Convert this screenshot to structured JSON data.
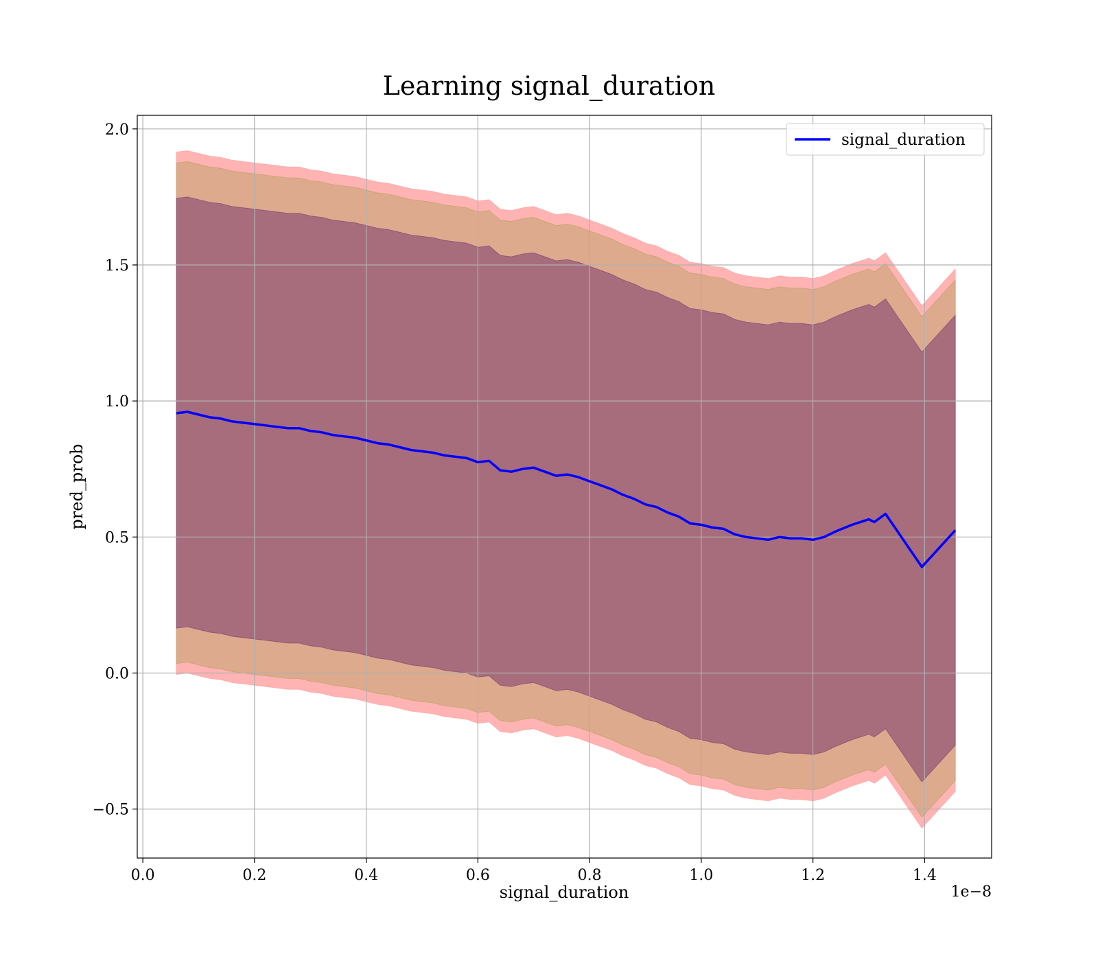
{
  "chart_data": {
    "type": "line",
    "title": "Learning signal_duration",
    "xlabel": "signal_duration",
    "ylabel": "pred_prob",
    "x_scale_label": "1e−8",
    "xlim": [
      -0.01,
      1.52
    ],
    "ylim": [
      -0.68,
      2.05
    ],
    "grid": true,
    "legend_position": "top-right",
    "x_ticks": [
      {
        "value": 0.0,
        "label": "0.0"
      },
      {
        "value": 0.2,
        "label": "0.2"
      },
      {
        "value": 0.4,
        "label": "0.4"
      },
      {
        "value": 0.6,
        "label": "0.6"
      },
      {
        "value": 0.8,
        "label": "0.8"
      },
      {
        "value": 1.0,
        "label": "1.0"
      },
      {
        "value": 1.2,
        "label": "1.2"
      },
      {
        "value": 1.4,
        "label": "1.4"
      }
    ],
    "y_ticks": [
      {
        "value": -0.5,
        "label": "−0.5"
      },
      {
        "value": 0.0,
        "label": "0.0"
      },
      {
        "value": 0.5,
        "label": "0.5"
      },
      {
        "value": 1.0,
        "label": "1.0"
      },
      {
        "value": 1.5,
        "label": "1.5"
      },
      {
        "value": 2.0,
        "label": "2.0"
      }
    ],
    "series": [
      {
        "name": "signal_duration",
        "color": "#0000ff",
        "x": [
          0.06,
          0.08,
          0.1,
          0.12,
          0.14,
          0.16,
          0.18,
          0.2,
          0.22,
          0.24,
          0.26,
          0.28,
          0.3,
          0.32,
          0.34,
          0.36,
          0.38,
          0.4,
          0.42,
          0.44,
          0.46,
          0.48,
          0.5,
          0.52,
          0.54,
          0.56,
          0.58,
          0.6,
          0.62,
          0.64,
          0.66,
          0.68,
          0.7,
          0.72,
          0.74,
          0.76,
          0.78,
          0.8,
          0.82,
          0.84,
          0.86,
          0.88,
          0.9,
          0.92,
          0.94,
          0.96,
          0.98,
          1.0,
          1.02,
          1.04,
          1.06,
          1.08,
          1.1,
          1.12,
          1.14,
          1.16,
          1.18,
          1.2,
          1.22,
          1.24,
          1.27,
          1.3,
          1.31,
          1.33,
          1.395,
          1.455
        ],
        "values": [
          0.955,
          0.96,
          0.95,
          0.94,
          0.935,
          0.925,
          0.92,
          0.915,
          0.91,
          0.905,
          0.9,
          0.9,
          0.89,
          0.885,
          0.875,
          0.87,
          0.865,
          0.855,
          0.845,
          0.84,
          0.83,
          0.82,
          0.815,
          0.81,
          0.8,
          0.795,
          0.79,
          0.775,
          0.78,
          0.745,
          0.74,
          0.75,
          0.755,
          0.74,
          0.725,
          0.73,
          0.72,
          0.705,
          0.69,
          0.675,
          0.655,
          0.64,
          0.62,
          0.61,
          0.59,
          0.575,
          0.55,
          0.545,
          0.535,
          0.53,
          0.51,
          0.5,
          0.495,
          0.49,
          0.5,
          0.495,
          0.495,
          0.49,
          0.5,
          0.52,
          0.545,
          0.565,
          0.555,
          0.585,
          0.39,
          0.525
        ]
      }
    ],
    "bands": [
      {
        "color": "#ff9999",
        "opacity": 0.75,
        "upper_offset": 0.96,
        "lower_offset": 0.96
      },
      {
        "color": "#b5a060",
        "opacity": 0.45,
        "upper_offset": 0.92,
        "lower_offset": 0.92
      },
      {
        "color": "#7a3a70",
        "opacity": 0.55,
        "upper_offset": 0.79,
        "lower_offset": 0.79
      }
    ]
  }
}
